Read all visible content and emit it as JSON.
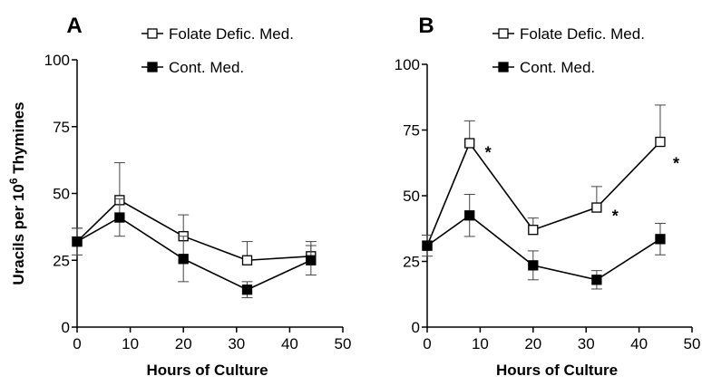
{
  "chart_data": [
    {
      "type": "line",
      "panel_label": "A",
      "x": [
        0,
        8,
        20,
        32,
        44
      ],
      "xlabel": "Hours of Culture",
      "ylabel": "Uracils per 10⁶ Thymines",
      "xlim": [
        0,
        50
      ],
      "ylim": [
        0,
        100
      ],
      "xticks": [
        0,
        10,
        20,
        30,
        40,
        50
      ],
      "yticks": [
        0,
        25,
        50,
        75,
        100
      ],
      "grid": false,
      "legend_position": "top-right",
      "series": [
        {
          "name": "Folate Defic. Med.",
          "marker": "open-square",
          "values": [
            32,
            47.5,
            34,
            25,
            26.5
          ],
          "error": [
            5,
            14,
            8,
            7,
            5.5
          ]
        },
        {
          "name": "Cont. Med.",
          "marker": "filled-square",
          "values": [
            32,
            41,
            25.5,
            14,
            25
          ],
          "error": [
            5,
            7,
            8.5,
            3,
            5.5
          ]
        }
      ],
      "annotations": []
    },
    {
      "type": "line",
      "panel_label": "B",
      "x": [
        0,
        8,
        20,
        32,
        44
      ],
      "xlabel": "Hours of Culture",
      "ylabel": "",
      "xlim": [
        0,
        50
      ],
      "ylim": [
        0,
        100
      ],
      "xticks": [
        0,
        10,
        20,
        30,
        40,
        50
      ],
      "yticks": [
        0,
        25,
        50,
        75,
        100
      ],
      "grid": false,
      "legend_position": "top-right",
      "series": [
        {
          "name": "Folate Defic. Med.",
          "marker": "open-square",
          "values": [
            31,
            70,
            37,
            45.5,
            70.5
          ],
          "error": [
            4,
            8.5,
            4.5,
            8,
            14
          ]
        },
        {
          "name": "Cont. Med.",
          "marker": "filled-square",
          "values": [
            31,
            42.5,
            23.5,
            18,
            33.5
          ],
          "error": [
            4,
            8,
            5.5,
            3.5,
            6
          ]
        }
      ],
      "annotations": [
        {
          "text": "*",
          "x": 11.5,
          "y": 67
        },
        {
          "text": "*",
          "x": 35.5,
          "y": 43
        },
        {
          "text": "*",
          "x": 47,
          "y": 63
        }
      ]
    }
  ]
}
